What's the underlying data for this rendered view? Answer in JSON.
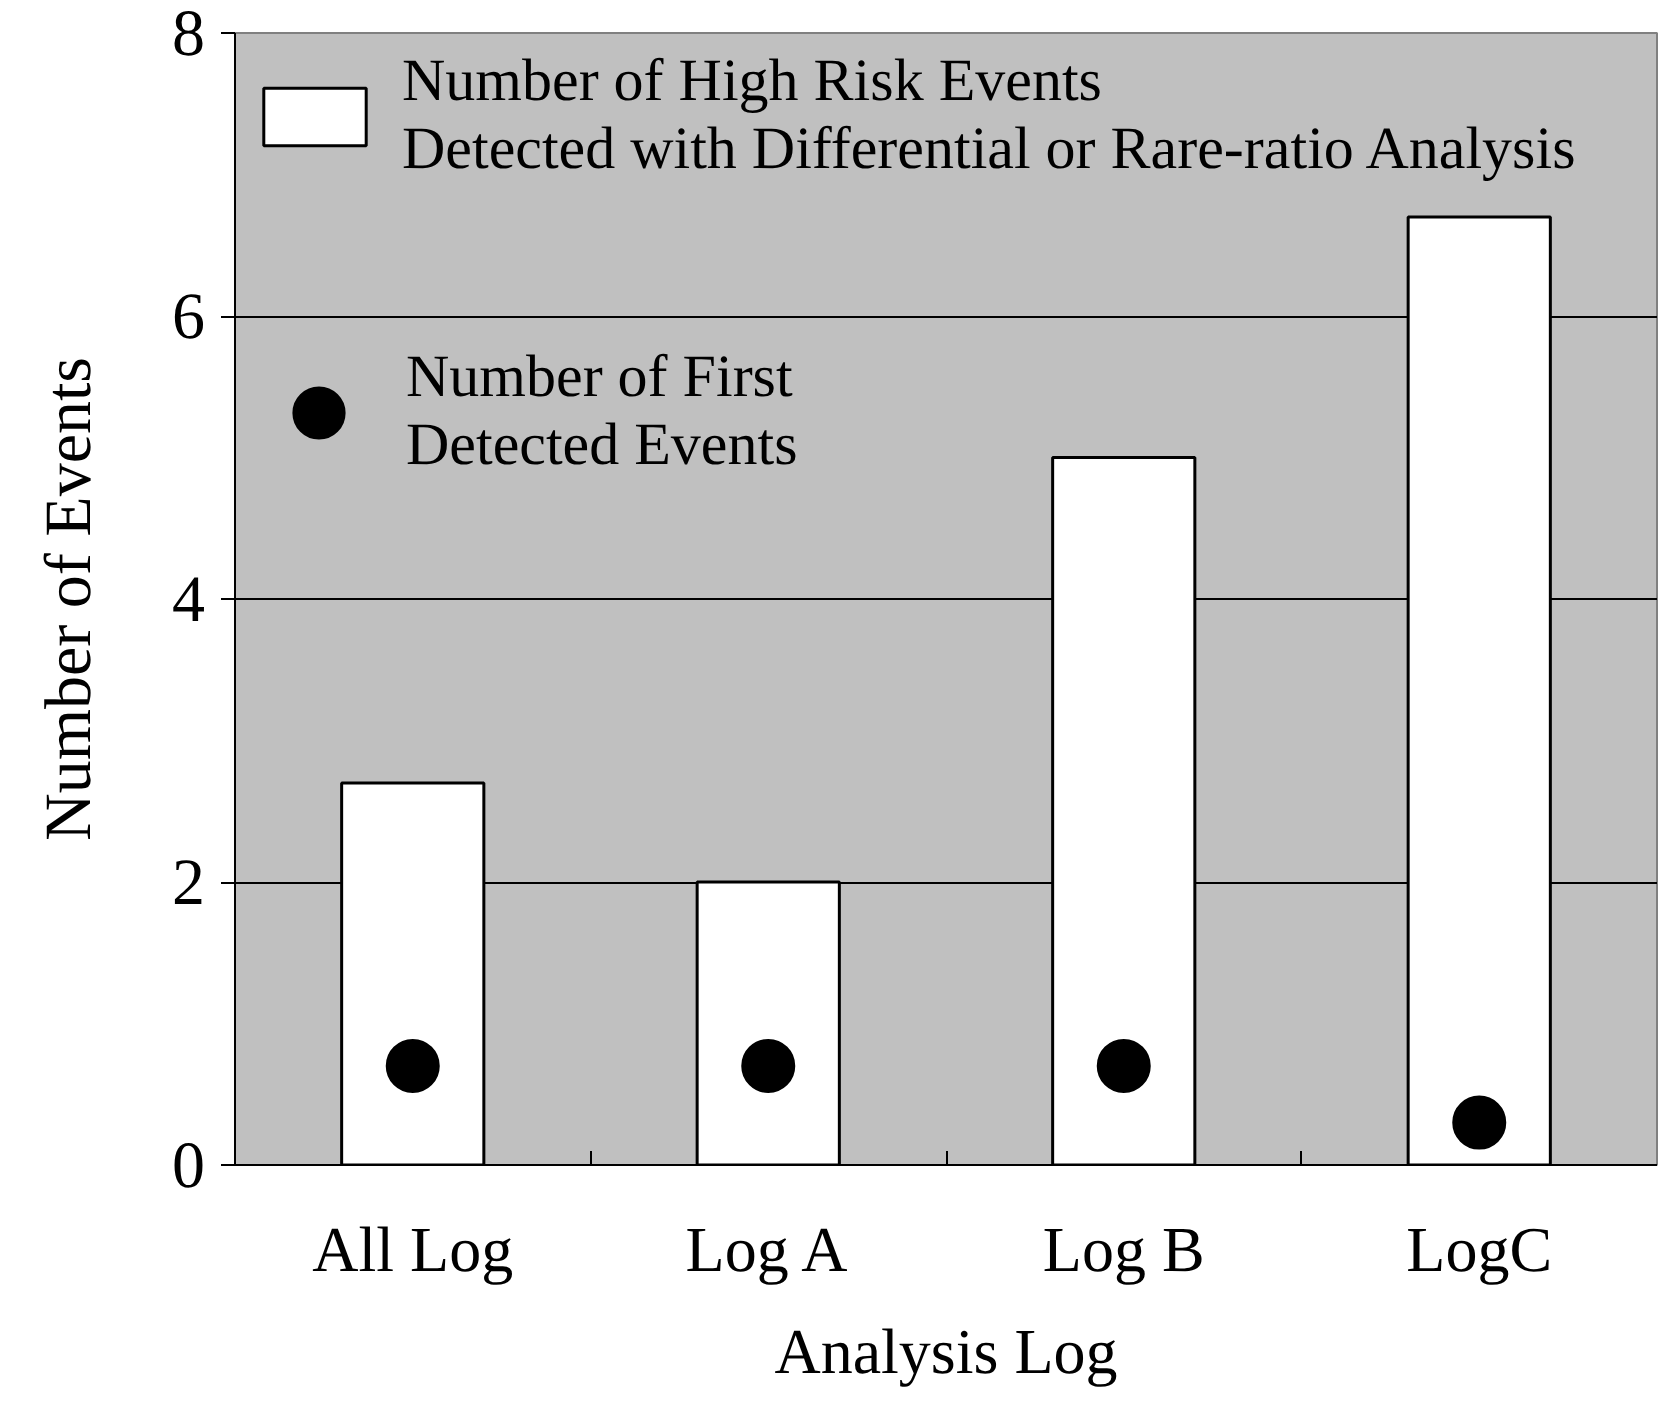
{
  "chart_data": {
    "type": "bar",
    "xlabel": "Analysis Log",
    "ylabel": "Number of Events",
    "categories": [
      "All Log",
      "Log A",
      "Log B",
      "LogC"
    ],
    "series": [
      {
        "name": "Number of High Risk Events\nDetected with Differential or Rare-ratio Analysis",
        "color": "#ffffff",
        "values": [
          2.7,
          2,
          5,
          6.7
        ]
      },
      {
        "name": "Number of First\nDetected Events",
        "type": "scatter",
        "color": "#000000",
        "marker": "circle",
        "values": [
          0.7,
          0.7,
          0.7,
          0.3
        ]
      }
    ],
    "ylim": [
      0,
      8
    ],
    "yticks": [
      0,
      2,
      4,
      6,
      8
    ],
    "grid": "y",
    "legend": "top left"
  }
}
